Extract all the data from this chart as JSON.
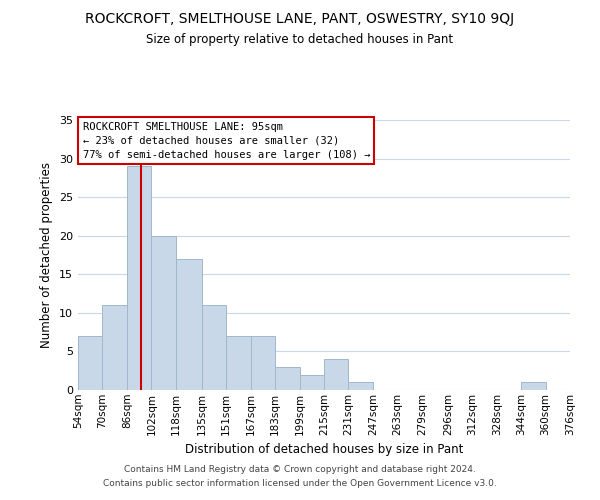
{
  "title": "ROCKCROFT, SMELTHOUSE LANE, PANT, OSWESTRY, SY10 9QJ",
  "subtitle": "Size of property relative to detached houses in Pant",
  "xlabel": "Distribution of detached houses by size in Pant",
  "ylabel": "Number of detached properties",
  "bar_color": "#c8d8e8",
  "bar_edge_color": "#a0b8cc",
  "bin_edges": [
    54,
    70,
    86,
    102,
    118,
    135,
    151,
    167,
    183,
    199,
    215,
    231,
    247,
    263,
    279,
    296,
    312,
    328,
    344,
    360,
    376
  ],
  "bin_labels": [
    "54sqm",
    "70sqm",
    "86sqm",
    "102sqm",
    "118sqm",
    "135sqm",
    "151sqm",
    "167sqm",
    "183sqm",
    "199sqm",
    "215sqm",
    "231sqm",
    "247sqm",
    "263sqm",
    "279sqm",
    "296sqm",
    "312sqm",
    "328sqm",
    "344sqm",
    "360sqm",
    "376sqm"
  ],
  "counts": [
    7,
    11,
    29,
    20,
    17,
    11,
    7,
    7,
    3,
    2,
    4,
    1,
    0,
    0,
    0,
    0,
    0,
    0,
    1,
    0
  ],
  "ylim": [
    0,
    35
  ],
  "yticks": [
    0,
    5,
    10,
    15,
    20,
    25,
    30,
    35
  ],
  "vline_x": 95,
  "vline_color": "#cc0000",
  "annotation_title": "ROCKCROFT SMELTHOUSE LANE: 95sqm",
  "annotation_line1": "← 23% of detached houses are smaller (32)",
  "annotation_line2": "77% of semi-detached houses are larger (108) →",
  "annotation_box_color": "#ffffff",
  "annotation_box_edge": "#cc0000",
  "footer1": "Contains HM Land Registry data © Crown copyright and database right 2024.",
  "footer2": "Contains public sector information licensed under the Open Government Licence v3.0.",
  "background_color": "#ffffff",
  "grid_color": "#c8d8e8"
}
